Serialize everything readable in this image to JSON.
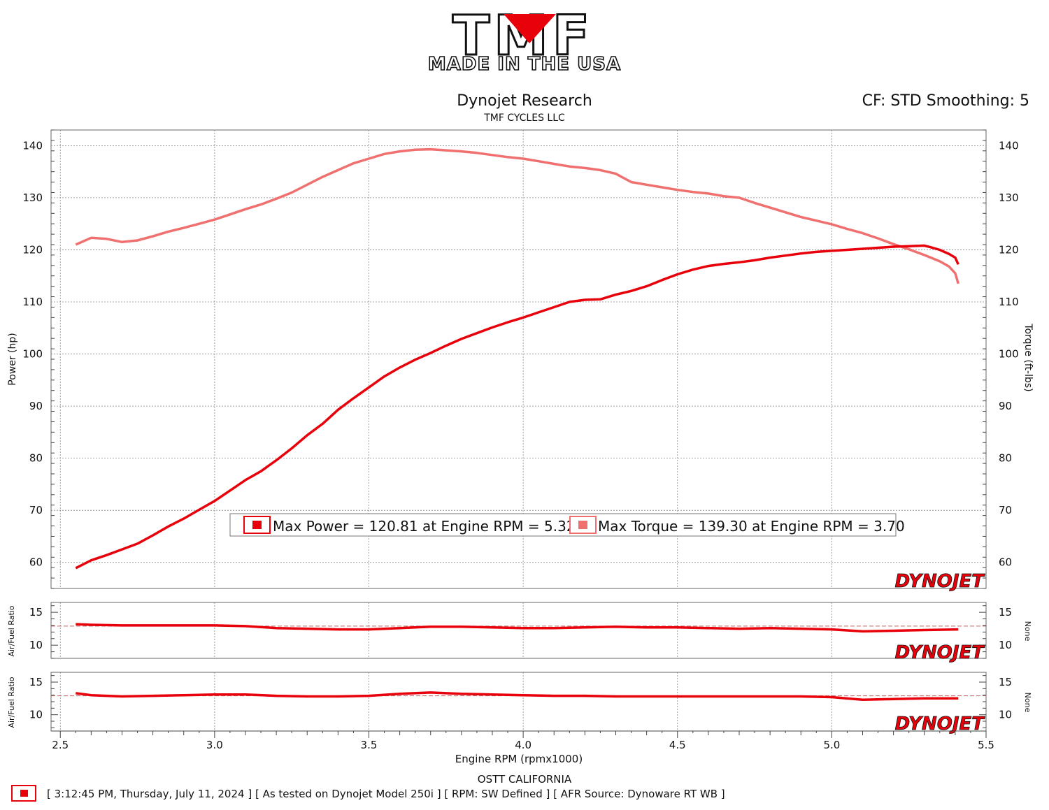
{
  "logo": {
    "main_text": "TMF",
    "sub_text": "MADE IN THE USA"
  },
  "header": {
    "title": "Dynojet Research",
    "subtitle": "TMF CYCLES LLC",
    "corner_text": "CF: STD Smoothing: 5"
  },
  "footer": {
    "center_text": "OSTT CALIFORNIA",
    "run_info": "[ 3:12:45 PM, Thursday, July 11, 2024 ] [ As tested on Dynojet Model 250i ] [ RPM: SW Defined ] [ AFR Source: Dynoware RT WB ]"
  },
  "watermark": "DYNOJET",
  "colors": {
    "power": "#e8000b",
    "torque": "#f07070",
    "grid": "#888888"
  },
  "chart_data": [
    {
      "type": "line",
      "xlabel": "Engine RPM (rpmx1000)",
      "ylabel": "Power (hp)",
      "y2label": "Torque (ft-lbs)",
      "xlim": [
        2.47,
        5.5
      ],
      "ylim": [
        55,
        143
      ],
      "xticks": [
        "2.5",
        "3.0",
        "3.5",
        "4.0",
        "4.5",
        "5.0",
        "5.5"
      ],
      "yticks": [
        "60",
        "70",
        "80",
        "90",
        "100",
        "110",
        "120",
        "130",
        "140"
      ],
      "grid": true,
      "series": [
        {
          "name": "Power",
          "axis": "left",
          "x": [
            2.55,
            2.58,
            2.6,
            2.65,
            2.7,
            2.75,
            2.8,
            2.85,
            2.9,
            2.95,
            3.0,
            3.05,
            3.1,
            3.15,
            3.2,
            3.25,
            3.3,
            3.35,
            3.4,
            3.45,
            3.5,
            3.55,
            3.6,
            3.65,
            3.7,
            3.75,
            3.8,
            3.85,
            3.9,
            3.95,
            4.0,
            4.05,
            4.1,
            4.15,
            4.2,
            4.25,
            4.3,
            4.35,
            4.4,
            4.45,
            4.5,
            4.55,
            4.6,
            4.65,
            4.7,
            4.75,
            4.8,
            4.85,
            4.9,
            4.95,
            5.0,
            5.05,
            5.1,
            5.15,
            5.2,
            5.25,
            5.3,
            5.32,
            5.35,
            5.38,
            5.4,
            5.41
          ],
          "values": [
            58.9,
            59.8,
            60.4,
            61.4,
            62.5,
            63.6,
            65.2,
            66.9,
            68.4,
            70.1,
            71.8,
            73.8,
            75.8,
            77.5,
            79.6,
            81.9,
            84.4,
            86.6,
            89.3,
            91.5,
            93.6,
            95.7,
            97.4,
            98.9,
            100.2,
            101.6,
            102.9,
            104.0,
            105.1,
            106.1,
            107.0,
            108.0,
            109.0,
            110.0,
            110.4,
            110.5,
            111.4,
            112.1,
            113.0,
            114.2,
            115.3,
            116.2,
            116.9,
            117.3,
            117.6,
            118.0,
            118.5,
            118.9,
            119.3,
            119.6,
            119.8,
            120.0,
            120.2,
            120.4,
            120.6,
            120.7,
            120.81,
            120.5,
            120.0,
            119.2,
            118.5,
            117.2
          ]
        },
        {
          "name": "Torque",
          "axis": "right",
          "x": [
            2.55,
            2.6,
            2.65,
            2.7,
            2.75,
            2.8,
            2.85,
            2.9,
            2.95,
            3.0,
            3.05,
            3.1,
            3.15,
            3.2,
            3.25,
            3.3,
            3.35,
            3.4,
            3.45,
            3.5,
            3.55,
            3.6,
            3.65,
            3.7,
            3.75,
            3.8,
            3.85,
            3.9,
            3.95,
            4.0,
            4.05,
            4.1,
            4.15,
            4.2,
            4.25,
            4.3,
            4.35,
            4.4,
            4.45,
            4.5,
            4.55,
            4.6,
            4.65,
            4.7,
            4.75,
            4.8,
            4.85,
            4.9,
            4.95,
            5.0,
            5.05,
            5.1,
            5.15,
            5.2,
            5.25,
            5.3,
            5.35,
            5.38,
            5.4,
            5.41
          ],
          "values": [
            121.0,
            122.3,
            122.1,
            121.5,
            121.8,
            122.6,
            123.5,
            124.2,
            125.0,
            125.8,
            126.8,
            127.8,
            128.7,
            129.8,
            131.0,
            132.5,
            134.0,
            135.3,
            136.6,
            137.5,
            138.4,
            138.9,
            139.2,
            139.3,
            139.1,
            138.9,
            138.6,
            138.2,
            137.8,
            137.5,
            137.0,
            136.5,
            136.0,
            135.7,
            135.3,
            134.6,
            133.0,
            132.5,
            132.0,
            131.5,
            131.1,
            130.8,
            130.3,
            130.0,
            129.0,
            128.1,
            127.2,
            126.3,
            125.6,
            124.9,
            124.0,
            123.2,
            122.2,
            121.1,
            120.1,
            119.0,
            117.8,
            116.8,
            115.5,
            113.5
          ]
        }
      ],
      "legend": [
        {
          "label": "Max Power = 120.81 at Engine RPM = 5.32",
          "color": "#e8000b"
        },
        {
          "label": "Max Torque = 139.30 at Engine RPM = 3.70",
          "color": "#f07070"
        }
      ],
      "legend_position": "bottom-center"
    },
    {
      "type": "line",
      "ylabel": "Air/Fuel Ratio",
      "y2label": "None",
      "ylim": [
        8,
        16.5
      ],
      "yticks": [
        "10",
        "15"
      ],
      "reference_line": 12.9,
      "series": [
        {
          "x": [
            2.55,
            2.6,
            2.7,
            2.8,
            2.9,
            3.0,
            3.1,
            3.2,
            3.3,
            3.4,
            3.5,
            3.6,
            3.7,
            3.8,
            3.9,
            4.0,
            4.1,
            4.2,
            4.3,
            4.4,
            4.5,
            4.6,
            4.7,
            4.8,
            4.9,
            5.0,
            5.1,
            5.2,
            5.3,
            5.41
          ],
          "values": [
            13.2,
            13.1,
            13.0,
            13.0,
            13.0,
            13.0,
            12.9,
            12.6,
            12.5,
            12.4,
            12.4,
            12.6,
            12.8,
            12.8,
            12.7,
            12.6,
            12.6,
            12.7,
            12.8,
            12.7,
            12.7,
            12.6,
            12.5,
            12.6,
            12.5,
            12.4,
            12.1,
            12.2,
            12.3,
            12.4
          ]
        }
      ]
    },
    {
      "type": "line",
      "ylabel": "Air/Fuel Ratio",
      "y2label": "None",
      "ylim": [
        7.5,
        16.5
      ],
      "yticks": [
        "10",
        "15"
      ],
      "reference_line": 12.9,
      "series": [
        {
          "x": [
            2.55,
            2.6,
            2.7,
            2.8,
            2.9,
            3.0,
            3.1,
            3.2,
            3.3,
            3.4,
            3.5,
            3.6,
            3.7,
            3.8,
            3.9,
            4.0,
            4.1,
            4.2,
            4.3,
            4.4,
            4.5,
            4.6,
            4.7,
            4.8,
            4.9,
            5.0,
            5.1,
            5.2,
            5.3,
            5.41
          ],
          "values": [
            13.3,
            13.0,
            12.8,
            12.9,
            13.0,
            13.1,
            13.1,
            12.9,
            12.8,
            12.8,
            12.9,
            13.2,
            13.4,
            13.2,
            13.1,
            13.0,
            12.9,
            12.9,
            12.8,
            12.8,
            12.8,
            12.8,
            12.8,
            12.8,
            12.8,
            12.7,
            12.3,
            12.4,
            12.5,
            12.5
          ]
        }
      ]
    }
  ]
}
